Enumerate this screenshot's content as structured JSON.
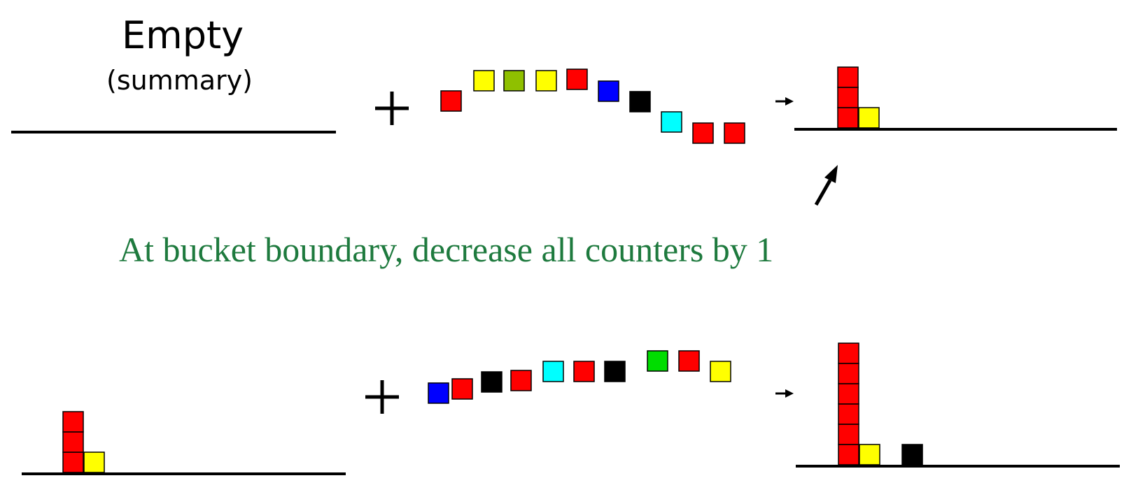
{
  "heading": "Empty",
  "subheading": "(summary)",
  "caption": "At bucket boundary, decrease all counters by 1",
  "colors": {
    "red": "#ff0000",
    "yellow": "#ffff00",
    "olive": "#8fc000",
    "green": "#00dd00",
    "blue": "#0000ff",
    "black": "#000000",
    "cyan": "#00ffff",
    "caption_green": "#1e7a3e"
  },
  "row1": {
    "stream": [
      "red",
      "yellow",
      "olive",
      "yellow",
      "red",
      "blue",
      "black",
      "cyan",
      "red",
      "red"
    ],
    "summary_before": [],
    "summary_after": [
      {
        "color": "red",
        "count": 3
      },
      {
        "color": "yellow",
        "count": 1
      }
    ]
  },
  "row2": {
    "stream": [
      "blue",
      "red",
      "black",
      "red",
      "cyan",
      "red",
      "black",
      "green",
      "red",
      "yellow"
    ],
    "summary_before": [
      {
        "color": "red",
        "count": 3
      },
      {
        "color": "yellow",
        "count": 1
      }
    ],
    "summary_after": [
      {
        "color": "red",
        "count": 6
      },
      {
        "color": "yellow",
        "count": 1
      },
      {
        "color": "black",
        "count": 1
      }
    ]
  },
  "icons": {
    "plus": "plus-icon",
    "result_arrow": "arrow-right-icon",
    "pointer_arrow": "arrow-up-icon"
  }
}
